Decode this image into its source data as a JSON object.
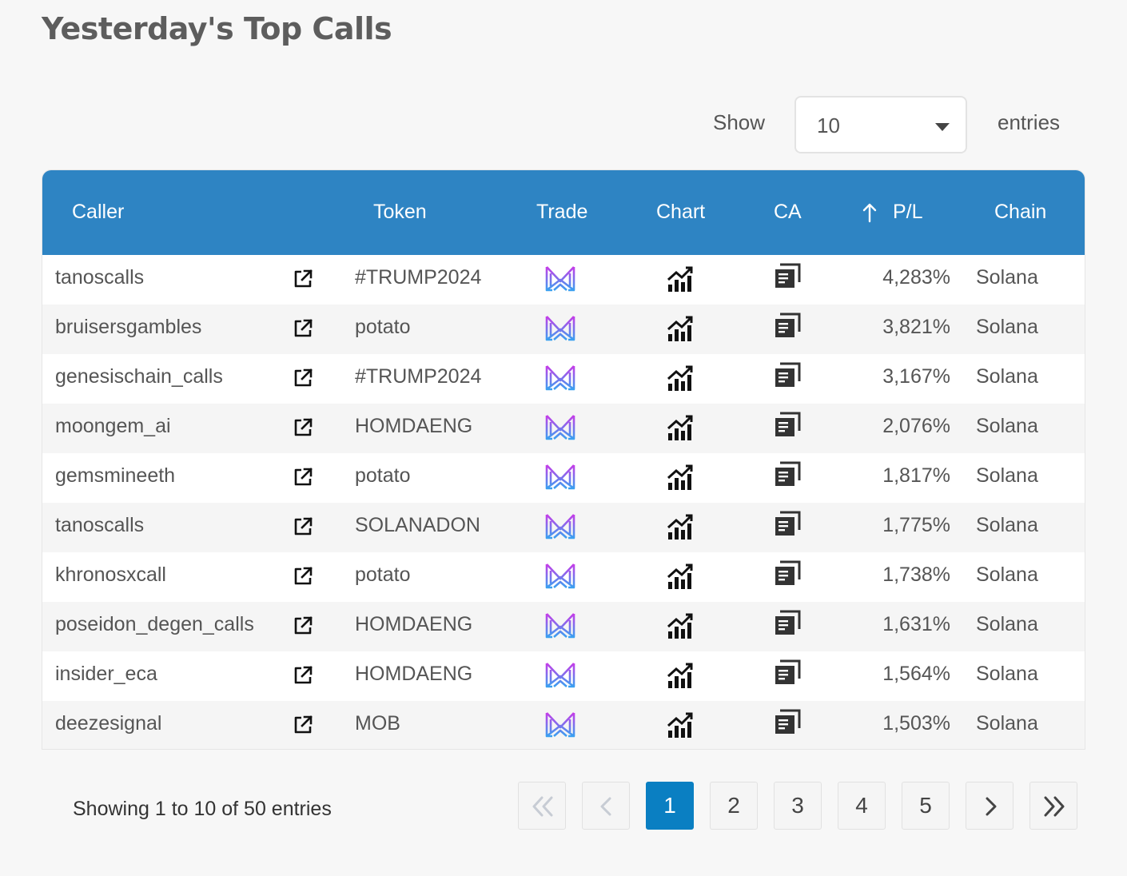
{
  "page": {
    "title": "Yesterday's Top Calls"
  },
  "length_control": {
    "show_label": "Show",
    "value": "10",
    "entries_label": "entries"
  },
  "table": {
    "columns": {
      "caller": "Caller",
      "token": "Token",
      "trade": "Trade",
      "chart": "Chart",
      "ca": "CA",
      "pl": "P/L",
      "chain": "Chain"
    },
    "sort": {
      "column": "P/L",
      "direction": "descending",
      "icon": "arrow-up-icon"
    },
    "icons": {
      "link": "external-link-icon",
      "trade": "trade-m-logo-icon",
      "chart": "chart-icon",
      "ca": "copy-icon"
    },
    "rows": [
      {
        "caller": "tanoscalls",
        "token": "#TRUMP2024",
        "pl": "4,283%",
        "chain": "Solana"
      },
      {
        "caller": "bruisersgambles",
        "token": "potato",
        "pl": "3,821%",
        "chain": "Solana"
      },
      {
        "caller": "genesischain_calls",
        "token": "#TRUMP2024",
        "pl": "3,167%",
        "chain": "Solana"
      },
      {
        "caller": "moongem_ai",
        "token": "HOMDAENG",
        "pl": "2,076%",
        "chain": "Solana"
      },
      {
        "caller": "gemsmineeth",
        "token": "potato",
        "pl": "1,817%",
        "chain": "Solana"
      },
      {
        "caller": "tanoscalls",
        "token": "SOLANADON",
        "pl": "1,775%",
        "chain": "Solana"
      },
      {
        "caller": "khronosxcall",
        "token": "potato",
        "pl": "1,738%",
        "chain": "Solana"
      },
      {
        "caller": "poseidon_degen_calls",
        "token": "HOMDAENG",
        "pl": "1,631%",
        "chain": "Solana"
      },
      {
        "caller": "insider_eca",
        "token": "HOMDAENG",
        "pl": "1,564%",
        "chain": "Solana"
      },
      {
        "caller": "deezesignal",
        "token": "MOB",
        "pl": "1,503%",
        "chain": "Solana"
      }
    ]
  },
  "footer": {
    "info": "Showing 1 to 10 of 50 entries",
    "pagination": {
      "first_icon": "double-chevron-left-icon",
      "prev_icon": "chevron-left-icon",
      "next_icon": "chevron-right-icon",
      "last_icon": "double-chevron-right-icon",
      "pages": [
        "1",
        "2",
        "3",
        "4",
        "5"
      ],
      "current": "1"
    }
  },
  "colors": {
    "header_bg": "#2e84c3",
    "active_page": "#0a7fc2",
    "trade_logo_top": "#c63ce8",
    "trade_logo_bottom": "#3aa0f0"
  }
}
